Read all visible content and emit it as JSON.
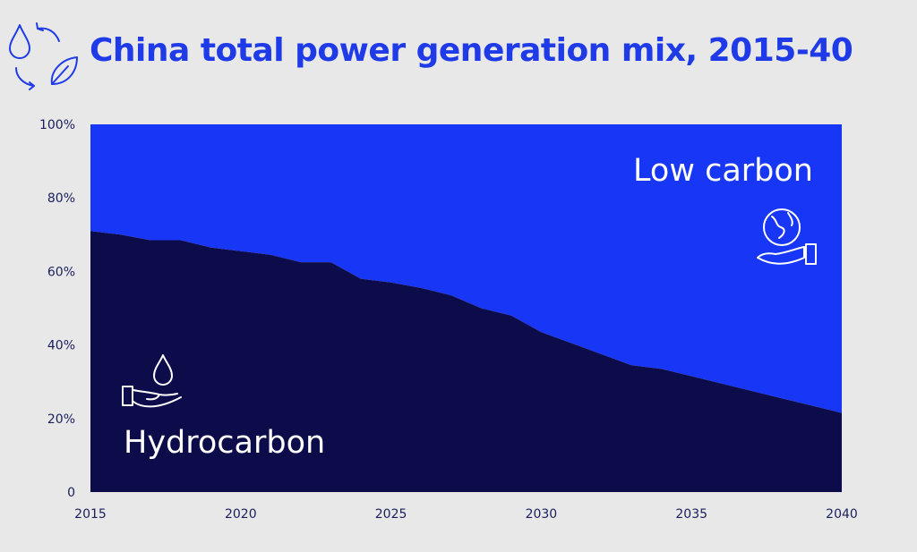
{
  "header": {
    "title": "China total power generation mix, 2015-40",
    "icon": "water-leaf-cycle-icon"
  },
  "colors": {
    "background": "#e8e8e8",
    "title": "#1f3be8",
    "low_carbon": "#1736f5",
    "hydrocarbon": "#0c0c4a",
    "axis_text": "#1a1f5c",
    "icon_stroke": "#ffffff"
  },
  "chart_data": {
    "type": "area",
    "title": "China total power generation mix, 2015-40",
    "xlabel": "",
    "ylabel": "",
    "xlim": [
      2015,
      2040
    ],
    "ylim": [
      0,
      100
    ],
    "x": [
      2015,
      2016,
      2017,
      2018,
      2019,
      2020,
      2021,
      2022,
      2023,
      2024,
      2025,
      2026,
      2027,
      2028,
      2029,
      2030,
      2031,
      2032,
      2033,
      2034,
      2035,
      2036,
      2037,
      2038,
      2039,
      2040
    ],
    "series": [
      {
        "name": "Hydrocarbon",
        "values": [
          71,
          70,
          68.5,
          68.5,
          66.5,
          65.5,
          64.5,
          62.5,
          62.5,
          58,
          57,
          55.5,
          53.5,
          50,
          48,
          43.5,
          40.5,
          37.5,
          34.5,
          33.5,
          31.5,
          29.5,
          27.5,
          25.5,
          23.5,
          21.5
        ]
      },
      {
        "name": "Low carbon",
        "values": [
          29,
          30,
          31.5,
          31.5,
          33.5,
          34.5,
          35.5,
          37.5,
          37.5,
          42,
          43,
          44.5,
          46.5,
          50,
          52,
          56.5,
          59.5,
          62.5,
          65.5,
          66.5,
          68.5,
          70.5,
          72.5,
          74.5,
          76.5,
          78.5
        ]
      }
    ],
    "stacked": true,
    "y_ticks": [
      {
        "value": 0,
        "label": "0"
      },
      {
        "value": 20,
        "label": "20%"
      },
      {
        "value": 40,
        "label": "40%"
      },
      {
        "value": 60,
        "label": "60%"
      },
      {
        "value": 80,
        "label": "80%"
      },
      {
        "value": 100,
        "label": "100%"
      }
    ],
    "x_ticks": [
      {
        "value": 2015,
        "label": "2015"
      },
      {
        "value": 2020,
        "label": "2020"
      },
      {
        "value": 2025,
        "label": "2025"
      },
      {
        "value": 2030,
        "label": "2030"
      },
      {
        "value": 2035,
        "label": "2035"
      },
      {
        "value": 2040,
        "label": "2040"
      }
    ],
    "region_labels": {
      "low_carbon": "Low carbon",
      "hydrocarbon": "Hydrocarbon"
    },
    "region_icons": {
      "low_carbon": "globe-in-hand-icon",
      "hydrocarbon": "oil-drop-in-hand-icon"
    },
    "grid": false,
    "legend": "none"
  }
}
